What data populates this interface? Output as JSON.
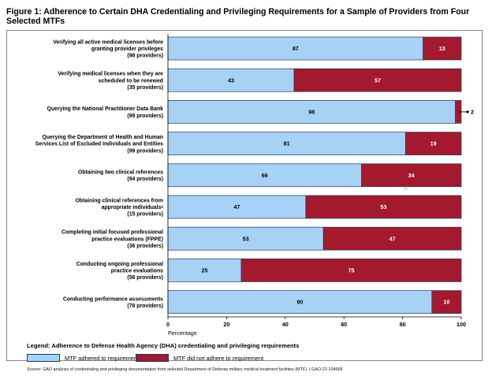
{
  "title": "Figure 1: Adherence to Certain DHA Credentialing and Privileging Requirements for a Sample of Providers from Four Selected MTFs",
  "chart_data": {
    "type": "bar",
    "orientation": "horizontal",
    "stacked": true,
    "categories": [
      [
        "Verifying all active medical licenses before",
        "granting provider privileges",
        "(98 providers)"
      ],
      [
        "Verifying medical licenses when they are",
        "scheduled to be renewed",
        "(35 providers)"
      ],
      [
        "Querying the National Practitioner Data Bank",
        "(99 providers)"
      ],
      [
        "Querying the Department of Health and Human",
        "Services List of Excluded Individuals and Entities",
        "(99 providers)"
      ],
      [
        "Obtaining two clinical references",
        "(94 providers)"
      ],
      [
        "Obtaining clinical references from",
        "appropriate individualsᵃ",
        "(15 providers)"
      ],
      [
        "Completing initial focused professional",
        "practice evaluations (FPPE)",
        "(36 providers)"
      ],
      [
        "Conducting ongoing professional",
        "practice evaluations",
        "(56 providers)"
      ],
      [
        "Conducting performance assessments",
        "(78 providers)"
      ]
    ],
    "series": [
      {
        "name": "MTF adhered to requirement",
        "color": "#a7d2f5",
        "values": [
          87,
          43,
          98,
          81,
          66,
          47,
          53,
          25,
          90
        ]
      },
      {
        "name": "MTF did not adhere to requirement",
        "color": "#a3192e",
        "values": [
          13,
          57,
          2,
          19,
          34,
          53,
          47,
          75,
          10
        ]
      }
    ],
    "xlabel": "Percentage",
    "xlim": [
      0,
      100
    ],
    "xticks": [
      0,
      20,
      40,
      60,
      80,
      100
    ],
    "annotation": "Al",
    "legend_title": "Legend: Adherence to Defense Health Agency (DHA) credentialing and privileging requirements",
    "legend_position": "bottom-left",
    "grid": false
  },
  "source": "Source: GAO analysis of credentialing and privileging documentation from selected Department of Defense military medical treatment facilities (MTF).  |  GAO-22-104668"
}
